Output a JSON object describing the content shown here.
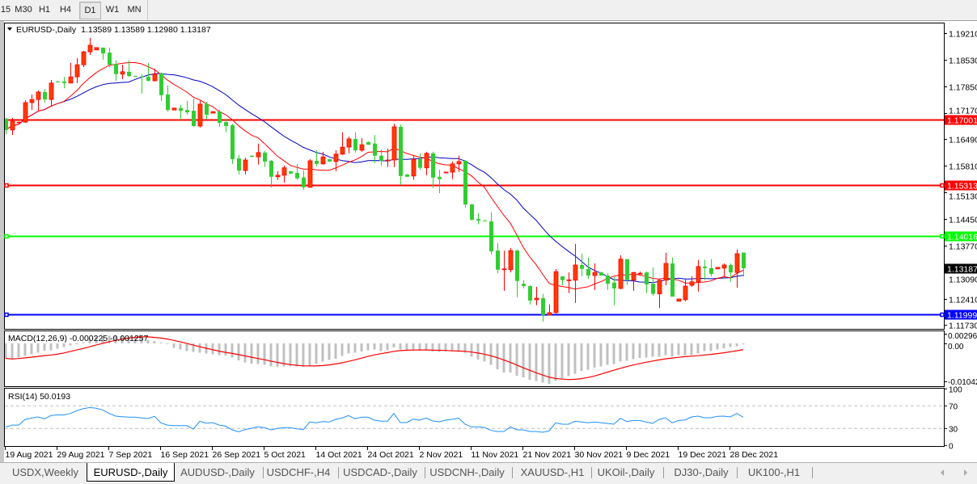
{
  "toolbar": {
    "timeframes": [
      "15",
      "M30",
      "H1",
      "H4",
      "D1",
      "W1",
      "MN"
    ],
    "active": "D1"
  },
  "chart": {
    "title": "EURUSD-,Daily",
    "ohlc": "1.13589 1.13589 1.12980 1.13187",
    "price_ticks": [
      "1.19210",
      "1.18530",
      "1.17850",
      "1.17170",
      "1.16490",
      "1.15810",
      "1.15130",
      "1.14450",
      "1.13770",
      "1.13090",
      "1.12410",
      "1.11730"
    ],
    "hlines": [
      {
        "price": 1.17001,
        "label": "1.17001",
        "color": "#ff0000",
        "handles": false
      },
      {
        "price": 1.15313,
        "label": "1.15313",
        "color": "#ff0000",
        "handles": true
      },
      {
        "price": 1.14016,
        "label": "1.14016",
        "color": "#00ff00",
        "handles": true
      },
      {
        "price": 1.11999,
        "label": "1.11999",
        "color": "#0000ff",
        "handles": true
      }
    ],
    "current_price": {
      "price": 1.13187,
      "label": "1.13187",
      "color": "#000000"
    },
    "colors": {
      "bull": "#ff3c00",
      "bull_border": "#ff0000",
      "bear": "#32cd32",
      "ma_fast": "#ff0000",
      "ma_slow": "#0000c0"
    }
  },
  "macd": {
    "label": "MACD(12,26,9) -0.000225 -0.001257",
    "ticks": [
      "0.002966",
      "0.00",
      "-0.010427"
    ],
    "histogram_color": "#c0c0c0",
    "signal_color": "#ff0000"
  },
  "rsi": {
    "label": "RSI(14) 50.0193",
    "ticks": [
      "100",
      "70",
      "30",
      "0"
    ],
    "line_color": "#1e90ff"
  },
  "time_axis": [
    "19 Aug 2021",
    "29 Aug 2021",
    "7 Sep 2021",
    "16 Sep 2021",
    "26 Sep 2021",
    "5 Oct 2021",
    "14 Oct 2021",
    "24 Oct 2021",
    "2 Nov 2021",
    "11 Nov 2021",
    "21 Nov 2021",
    "30 Nov 2021",
    "9 Dec 2021",
    "19 Dec 2021",
    "28 Dec 2021"
  ],
  "tabs": [
    "USDX,Weekly",
    "EURUSD-,Daily",
    "AUDUSD-,Daily",
    "USDCHF-,H4",
    "USDCAD-,Daily",
    "USDCNH-,Daily",
    "XAUUSD-,H1",
    "UKOil-,Daily",
    "DJ30-,Daily",
    "UK100-,H1"
  ],
  "active_tab": "EURUSD-,Daily",
  "chart_data": {
    "type": "candlestick",
    "title": "EURUSD-,Daily",
    "ylim": [
      1.1172,
      1.1945
    ],
    "x_tick_labels": [
      "19 Aug 2021",
      "29 Aug 2021",
      "7 Sep 2021",
      "16 Sep 2021",
      "26 Sep 2021",
      "5 Oct 2021",
      "14 Oct 2021",
      "24 Oct 2021",
      "2 Nov 2021",
      "11 Nov 2021",
      "21 Nov 2021",
      "30 Nov 2021",
      "9 Dec 2021",
      "19 Dec 2021",
      "28 Dec 2021"
    ],
    "candle_fields": [
      "open",
      "high",
      "low",
      "close"
    ],
    "candles": [
      [
        1.1702,
        1.1704,
        1.1662,
        1.1673
      ],
      [
        1.1673,
        1.1704,
        1.166,
        1.1695
      ],
      [
        1.1691,
        1.1694,
        1.169,
        1.1693
      ],
      [
        1.1693,
        1.1749,
        1.1691,
        1.1743
      ],
      [
        1.1743,
        1.1764,
        1.1724,
        1.1751
      ],
      [
        1.1751,
        1.1774,
        1.1722,
        1.177
      ],
      [
        1.177,
        1.1778,
        1.1743,
        1.1751
      ],
      [
        1.1751,
        1.1801,
        1.1733,
        1.1793
      ],
      [
        1.1797,
        1.1799,
        1.1795,
        1.1796
      ],
      [
        1.1797,
        1.1809,
        1.178,
        1.1793
      ],
      [
        1.1793,
        1.1845,
        1.1793,
        1.1809
      ],
      [
        1.1809,
        1.1857,
        1.1793,
        1.184
      ],
      [
        1.184,
        1.1876,
        1.1834,
        1.1873
      ],
      [
        1.1873,
        1.1909,
        1.1865,
        1.189
      ],
      [
        1.1878,
        1.1884,
        1.1878,
        1.1884
      ],
      [
        1.1884,
        1.1884,
        1.1853,
        1.1869
      ],
      [
        1.1871,
        1.1884,
        1.1834,
        1.184
      ],
      [
        1.1842,
        1.1851,
        1.1799,
        1.1816
      ],
      [
        1.1816,
        1.184,
        1.1803,
        1.1822
      ],
      [
        1.1822,
        1.1851,
        1.1809,
        1.1811
      ],
      [
        1.1811,
        1.1812,
        1.1809,
        1.1809
      ],
      [
        1.181,
        1.1816,
        1.1766,
        1.1809
      ],
      [
        1.1809,
        1.1845,
        1.1797,
        1.1799
      ],
      [
        1.1799,
        1.183,
        1.1797,
        1.1816
      ],
      [
        1.1818,
        1.182,
        1.1747,
        1.1762
      ],
      [
        1.1764,
        1.1787,
        1.172,
        1.1724
      ],
      [
        1.1724,
        1.1729,
        1.1724,
        1.1729
      ],
      [
        1.1729,
        1.1737,
        1.1698,
        1.1722
      ],
      [
        1.1724,
        1.1747,
        1.1712,
        1.1718
      ],
      [
        1.1722,
        1.1753,
        1.1681,
        1.1683
      ],
      [
        1.1683,
        1.1749,
        1.1679,
        1.1739
      ],
      [
        1.1739,
        1.1745,
        1.17,
        1.1712
      ],
      [
        1.1716,
        1.172,
        1.1716,
        1.172
      ],
      [
        1.172,
        1.1724,
        1.1681,
        1.1691
      ],
      [
        1.1693,
        1.1702,
        1.1667,
        1.1683
      ],
      [
        1.1685,
        1.1689,
        1.1586,
        1.1598
      ],
      [
        1.16,
        1.1609,
        1.1559,
        1.1569
      ],
      [
        1.1569,
        1.1602,
        1.1559,
        1.1596
      ],
      [
        1.1607,
        1.1608,
        1.1604,
        1.1604
      ],
      [
        1.1604,
        1.1638,
        1.1584,
        1.1615
      ],
      [
        1.1615,
        1.1619,
        1.1578,
        1.1592
      ],
      [
        1.1594,
        1.1596,
        1.1526,
        1.1553
      ],
      [
        1.1553,
        1.1567,
        1.1545,
        1.1557
      ],
      [
        1.1557,
        1.1582,
        1.1538,
        1.1576
      ],
      [
        1.1567,
        1.1568,
        1.1561,
        1.1561
      ],
      [
        1.1563,
        1.1586,
        1.1545,
        1.1549
      ],
      [
        1.1551,
        1.1569,
        1.152,
        1.1526
      ],
      [
        1.1526,
        1.1598,
        1.1526,
        1.1594
      ],
      [
        1.1594,
        1.1621,
        1.158,
        1.1586
      ],
      [
        1.1586,
        1.1617,
        1.1584,
        1.1604
      ],
      [
        1.1598,
        1.1599,
        1.1592,
        1.1592
      ],
      [
        1.1592,
        1.1621,
        1.1567,
        1.1611
      ],
      [
        1.1611,
        1.1667,
        1.1609,
        1.1629
      ],
      [
        1.1629,
        1.1656,
        1.1613,
        1.165
      ],
      [
        1.165,
        1.1667,
        1.1615,
        1.1621
      ],
      [
        1.1621,
        1.1652,
        1.1617,
        1.1635
      ],
      [
        1.1642,
        1.1643,
        1.1635,
        1.1635
      ],
      [
        1.1638,
        1.166,
        1.1588,
        1.1607
      ],
      [
        1.1607,
        1.1623,
        1.1582,
        1.1594
      ],
      [
        1.1594,
        1.1625,
        1.1578,
        1.1596
      ],
      [
        1.1596,
        1.1689,
        1.1578,
        1.1681
      ],
      [
        1.1681,
        1.1687,
        1.1532,
        1.1555
      ],
      [
        1.1559,
        1.156,
        1.1553,
        1.1553
      ],
      [
        1.1555,
        1.1607,
        1.1545,
        1.1598
      ],
      [
        1.1598,
        1.1613,
        1.1571,
        1.1576
      ],
      [
        1.1576,
        1.1617,
        1.1557,
        1.1613
      ],
      [
        1.1613,
        1.1617,
        1.1524,
        1.1551
      ],
      [
        1.1553,
        1.1571,
        1.1511,
        1.1547
      ],
      [
        1.1563,
        1.1566,
        1.1562,
        1.1565
      ],
      [
        1.1565,
        1.1592,
        1.1547,
        1.1586
      ],
      [
        1.1586,
        1.1607,
        1.1565,
        1.1592
      ],
      [
        1.1594,
        1.1596,
        1.1474,
        1.1482
      ],
      [
        1.1482,
        1.1484,
        1.1441,
        1.1443
      ],
      [
        1.1445,
        1.146,
        1.1431,
        1.1441
      ],
      [
        1.1441,
        1.1442,
        1.1439,
        1.1439
      ],
      [
        1.1439,
        1.1462,
        1.1354,
        1.1362
      ],
      [
        1.1364,
        1.1383,
        1.1306,
        1.1315
      ],
      [
        1.1317,
        1.1364,
        1.1261,
        1.1317
      ],
      [
        1.1315,
        1.1371,
        1.1308,
        1.1364
      ],
      [
        1.1364,
        1.1367,
        1.1244,
        1.1286
      ],
      [
        1.1279,
        1.1288,
        1.1267,
        1.1273
      ],
      [
        1.1273,
        1.1275,
        1.1226,
        1.1236
      ],
      [
        1.1238,
        1.1271,
        1.1224,
        1.1242
      ],
      [
        1.1242,
        1.1253,
        1.1182,
        1.1199
      ],
      [
        1.1199,
        1.1226,
        1.1199,
        1.1205
      ],
      [
        1.1205,
        1.1317,
        1.1203,
        1.131
      ],
      [
        1.1298,
        1.1298,
        1.1275,
        1.1288
      ],
      [
        1.1288,
        1.1308,
        1.1255,
        1.1289
      ],
      [
        1.1288,
        1.1381,
        1.123,
        1.1327
      ],
      [
        1.1327,
        1.1356,
        1.1298,
        1.1317
      ],
      [
        1.1317,
        1.1346,
        1.1292,
        1.13
      ],
      [
        1.13,
        1.1331,
        1.1263,
        1.1308
      ],
      [
        1.1308,
        1.131,
        1.13,
        1.13
      ],
      [
        1.13,
        1.1306,
        1.1263,
        1.1279
      ],
      [
        1.1282,
        1.1296,
        1.1224,
        1.1267
      ],
      [
        1.1267,
        1.1352,
        1.1265,
        1.1342
      ],
      [
        1.1342,
        1.1342,
        1.1275,
        1.1288
      ],
      [
        1.1288,
        1.1308,
        1.1261,
        1.1308
      ],
      [
        1.1306,
        1.131,
        1.1304,
        1.1306
      ],
      [
        1.1308,
        1.131,
        1.1255,
        1.1277
      ],
      [
        1.1279,
        1.1321,
        1.1248,
        1.1253
      ],
      [
        1.1253,
        1.129,
        1.1217,
        1.1288
      ],
      [
        1.1288,
        1.1358,
        1.1275,
        1.1331
      ],
      [
        1.1331,
        1.1346,
        1.1246,
        1.1246
      ],
      [
        1.1234,
        1.124,
        1.1234,
        1.124
      ],
      [
        1.1238,
        1.1292,
        1.1234,
        1.1273
      ],
      [
        1.1275,
        1.1298,
        1.1271,
        1.1284
      ],
      [
        1.1284,
        1.134,
        1.1259,
        1.1323
      ],
      [
        1.1323,
        1.134,
        1.1288,
        1.1319
      ],
      [
        1.1319,
        1.1342,
        1.1298,
        1.1304
      ],
      [
        1.1317,
        1.1321,
        1.1317,
        1.1321
      ],
      [
        1.1319,
        1.1331,
        1.1298,
        1.1327
      ],
      [
        1.1327,
        1.1331,
        1.1284,
        1.1308
      ],
      [
        1.1308,
        1.1367,
        1.1269,
        1.1356
      ],
      [
        1.13589,
        1.13589,
        1.1298,
        1.13187
      ]
    ],
    "macd_ylim": [
      -0.010427,
      0.002966
    ],
    "macd_histogram": [
      -0.0037,
      -0.004,
      -0.0035,
      -0.0031,
      -0.0027,
      -0.0023,
      -0.0018,
      -0.0017,
      -0.0013,
      -0.0009,
      -0.0005,
      -0.0002,
      0.0002,
      0.001,
      0.0017,
      0.0018,
      0.0019,
      0.0019,
      0.0018,
      0.0017,
      0.0015,
      0.0013,
      0.0009,
      0.0006,
      0.0002,
      -0.0002,
      -0.0011,
      -0.0015,
      -0.0019,
      -0.0021,
      -0.0023,
      -0.0025,
      -0.0027,
      -0.0029,
      -0.003,
      -0.0035,
      -0.0042,
      -0.0047,
      -0.005,
      -0.0051,
      -0.0053,
      -0.0057,
      -0.0058,
      -0.0057,
      -0.0057,
      -0.0057,
      -0.0058,
      -0.0055,
      -0.005,
      -0.0045,
      -0.0041,
      -0.0038,
      -0.0031,
      -0.0025,
      -0.0023,
      -0.002,
      -0.0017,
      -0.0015,
      -0.0019,
      -0.0017,
      -0.001,
      -0.0015,
      -0.0017,
      -0.0018,
      -0.0018,
      -0.0017,
      -0.002,
      -0.0021,
      -0.002,
      -0.002,
      -0.002,
      -0.0023,
      -0.0033,
      -0.004,
      -0.0045,
      -0.0053,
      -0.0064,
      -0.0072,
      -0.0072,
      -0.008,
      -0.0084,
      -0.009,
      -0.0093,
      -0.0097,
      -0.01,
      -0.0093,
      -0.0087,
      -0.0081,
      -0.0075,
      -0.0068,
      -0.0065,
      -0.006,
      -0.0057,
      -0.0053,
      -0.0051,
      -0.0045,
      -0.0043,
      -0.0039,
      -0.0036,
      -0.0035,
      -0.0033,
      -0.0033,
      -0.0029,
      -0.0032,
      -0.0029,
      -0.0029,
      -0.0029,
      -0.0025,
      -0.0019,
      -0.0019,
      -0.0015,
      -0.0012,
      -0.0009,
      -0.0007,
      -0.000225
    ],
    "rsi_ylim": [
      0,
      100
    ],
    "rsi_levels": [
      70,
      30
    ],
    "rsi": [
      32.9,
      36,
      36,
      46,
      48.5,
      50.4,
      47,
      52.8,
      54,
      54,
      56.6,
      61.4,
      65.2,
      67,
      65.7,
      62.9,
      56.6,
      51.9,
      50.9,
      50,
      50,
      48.6,
      47.6,
      51.4,
      40,
      36,
      35.2,
      35,
      35,
      29,
      42.8,
      39.4,
      40.4,
      36,
      34.2,
      27.6,
      24.3,
      28,
      30.4,
      32.9,
      31.4,
      27.6,
      30,
      31.4,
      31.4,
      29.4,
      28,
      41.4,
      40,
      42.3,
      41.4,
      46.1,
      48.5,
      52.8,
      47.1,
      50,
      50,
      44.7,
      42.8,
      42.8,
      56.6,
      40.4,
      40.4,
      46.6,
      44.7,
      48.5,
      43.3,
      41.9,
      44.7,
      46.1,
      48.5,
      37.6,
      32.9,
      32.9,
      31.9,
      26.6,
      24.7,
      24.7,
      32.9,
      27.6,
      27.6,
      24.7,
      24.7,
      23.3,
      25.7,
      40,
      37.6,
      37.6,
      42.8,
      41.4,
      40,
      41.4,
      40,
      39,
      37.6,
      48,
      42.3,
      44.2,
      44.2,
      41.4,
      39,
      46.1,
      49,
      40,
      44.2,
      45.2,
      50.4,
      51.9,
      49,
      49,
      51.4,
      51.9,
      50.4,
      56.6,
      50.0193
    ]
  }
}
